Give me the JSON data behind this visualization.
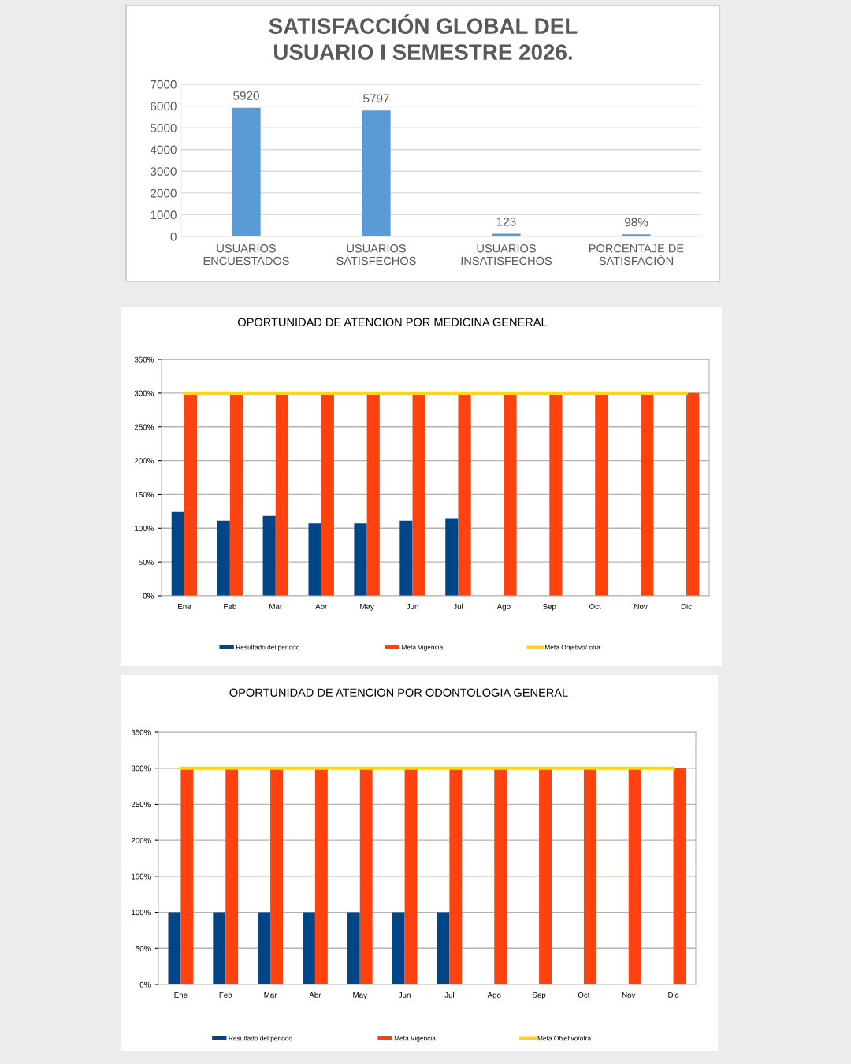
{
  "chart_data": [
    {
      "type": "bar",
      "title": "SATISFACCIÓN GLOBAL DEL\nUSUARIO I SEMESTRE 2026.",
      "categories": [
        "USUARIOS\nENCUESTADOS",
        "USUARIOS\nSATISFECHOS",
        "USUARIOS\nINSATISFECHOS",
        "PORCENTAJE DE\nSATISFACIÓN"
      ],
      "values": [
        5920,
        5797,
        123,
        98
      ],
      "value_labels": [
        "5920",
        "5797",
        "123",
        "98%"
      ],
      "color": "#5b9bd5",
      "ylim": [
        0,
        7000
      ],
      "yticks": [
        0,
        1000,
        2000,
        3000,
        4000,
        5000,
        6000,
        7000
      ],
      "grid": "y"
    },
    {
      "type": "bar",
      "title": "OPORTUNIDAD DE ATENCION POR MEDICINA GENERAL",
      "categories": [
        "Ene",
        "Feb",
        "Mar",
        "Abr",
        "May",
        "Jun",
        "Jul",
        "Ago",
        "Sep",
        "Oct",
        "Nov",
        "Dic"
      ],
      "series": [
        {
          "name": "Resultado del periodo",
          "color": "#004586",
          "values": [
            125,
            111,
            118,
            107,
            107,
            111,
            115,
            null,
            null,
            null,
            null,
            null
          ]
        },
        {
          "name": "Meta Vigencia",
          "color": "#ff420e",
          "values": [
            300,
            300,
            300,
            300,
            300,
            300,
            300,
            300,
            300,
            300,
            300,
            300
          ]
        },
        {
          "name": "Meta Objetivo/ otra",
          "type": "line",
          "color": "#ffd320",
          "values": [
            300,
            300,
            300,
            300,
            300,
            300,
            300,
            300,
            300,
            300,
            300,
            300
          ]
        }
      ],
      "ylim": [
        0,
        350
      ],
      "yticks": [
        {
          "value": 0,
          "label": "0%"
        },
        {
          "value": 50,
          "label": "50%"
        },
        {
          "value": 100,
          "label": "100%"
        },
        {
          "value": 150,
          "label": "150%"
        },
        {
          "value": 200,
          "label": "200%"
        },
        {
          "value": 250,
          "label": "250%"
        },
        {
          "value": 300,
          "label": "300%"
        },
        {
          "value": 350,
          "label": "350%"
        }
      ],
      "grid": "y",
      "legend": "bottom"
    },
    {
      "type": "bar",
      "title": "OPORTUNIDAD DE ATENCION POR ODONTOLOGIA GENERAL",
      "categories": [
        "Ene",
        "Feb",
        "Mar",
        "Abr",
        "May",
        "Jun",
        "Jul",
        "Ago",
        "Sep",
        "Oct",
        "Nov",
        "Dic"
      ],
      "series": [
        {
          "name": "Resultado del periodo",
          "color": "#004586",
          "values": [
            100,
            100,
            100,
            100,
            100,
            100,
            100,
            null,
            null,
            null,
            null,
            null
          ]
        },
        {
          "name": "Meta Vigencia",
          "color": "#ff420e",
          "values": [
            300,
            300,
            300,
            300,
            300,
            300,
            300,
            300,
            300,
            300,
            300,
            300
          ]
        },
        {
          "name": "Meta Objetivo/otra",
          "type": "line",
          "color": "#ffd320",
          "values": [
            300,
            300,
            300,
            300,
            300,
            300,
            300,
            300,
            300,
            300,
            300,
            300
          ]
        }
      ],
      "ylim": [
        0,
        350
      ],
      "yticks": [
        {
          "value": 0,
          "label": "0%"
        },
        {
          "value": 50,
          "label": "50%"
        },
        {
          "value": 100,
          "label": "100%"
        },
        {
          "value": 150,
          "label": "150%"
        },
        {
          "value": 200,
          "label": "200%"
        },
        {
          "value": 250,
          "label": "250%"
        },
        {
          "value": 300,
          "label": "300%"
        },
        {
          "value": 350,
          "label": "350%"
        }
      ],
      "grid": "y",
      "legend": "bottom"
    }
  ]
}
